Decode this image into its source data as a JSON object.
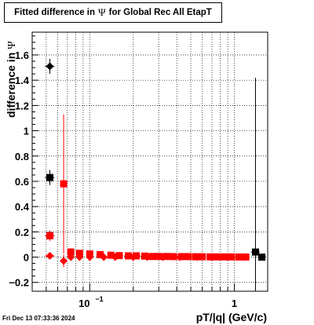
{
  "title": {
    "prefix": "Fitted difference in",
    "symbol": "Ψ",
    "suffix": "for Global Rec All EtapT"
  },
  "timestamp": "Fri Dec 13 07:33:36 2024",
  "chart_data": {
    "type": "scatter",
    "xlabel": "pT/|q| (GeV/c)",
    "ylabel_prefix": "difference in",
    "ylabel_symbol": "Ψ",
    "xscale": "log",
    "xlim": [
      0.04,
      1.7
    ],
    "ylim": [
      -0.27,
      1.78
    ],
    "grid": true,
    "xticks_major": [
      {
        "value": 0.1,
        "base": "10",
        "exp": "−1"
      },
      {
        "value": 1,
        "label": "1"
      }
    ],
    "yticks": [
      {
        "value": -0.2,
        "label": "−0.2"
      },
      {
        "value": 0,
        "label": "0"
      },
      {
        "value": 0.2,
        "label": "0.2"
      },
      {
        "value": 0.4,
        "label": "0.4"
      },
      {
        "value": 0.6,
        "label": "0.6"
      },
      {
        "value": 0.8,
        "label": "0.8"
      },
      {
        "value": 1,
        "label": "1"
      },
      {
        "value": 1.2,
        "label": "1.2"
      },
      {
        "value": 1.4,
        "label": "1.4"
      },
      {
        "value": 1.6,
        "label": "1.6"
      }
    ],
    "series": [
      {
        "marker": "diamond",
        "color": "#000000",
        "points": [
          {
            "x": 0.053,
            "y": 1.51,
            "xerr": 0.004,
            "yerr": 0.06
          }
        ]
      },
      {
        "marker": "square",
        "color": "#000000",
        "points": [
          {
            "x": 0.053,
            "y": 0.63,
            "xerr": 0.004,
            "yerr": 0.06
          },
          {
            "x": 0.053,
            "y": 0.17,
            "xerr": 0.004,
            "yerr": 0.04
          },
          {
            "x": 1.4,
            "y": 0.04,
            "xerr": 0.1,
            "yerr": 1.38
          },
          {
            "x": 1.55,
            "y": 0.0,
            "xerr": 0.1,
            "yerr": 0.02
          }
        ]
      },
      {
        "marker": "square",
        "color": "#ff0000",
        "points": [
          {
            "x": 0.053,
            "y": 0.17,
            "xerr": 0.004,
            "yerr": 0.04
          },
          {
            "x": 0.066,
            "y": 0.58,
            "xerr": 0.003,
            "yerr": 0.55
          },
          {
            "x": 0.074,
            "y": 0.04,
            "xerr": 0.004,
            "yerr": 0.03
          },
          {
            "x": 0.085,
            "y": 0.03,
            "xerr": 0.004,
            "yerr": 0.02
          },
          {
            "x": 0.1,
            "y": 0.025,
            "xerr": 0.005,
            "yerr": 0.02
          },
          {
            "x": 0.118,
            "y": 0.02,
            "xerr": 0.007,
            "yerr": 0.02
          },
          {
            "x": 0.14,
            "y": 0.015,
            "xerr": 0.008,
            "yerr": 0.015
          },
          {
            "x": 0.16,
            "y": 0.012,
            "xerr": 0.01,
            "yerr": 0.01
          },
          {
            "x": 0.185,
            "y": 0.01,
            "xerr": 0.012,
            "yerr": 0.01
          },
          {
            "x": 0.21,
            "y": 0.01,
            "xerr": 0.014,
            "yerr": 0.01
          },
          {
            "x": 0.24,
            "y": 0.008,
            "xerr": 0.015,
            "yerr": 0.008
          },
          {
            "x": 0.27,
            "y": 0.005,
            "xerr": 0.016,
            "yerr": 0.008
          },
          {
            "x": 0.3,
            "y": 0.005,
            "xerr": 0.018,
            "yerr": 0.008
          },
          {
            "x": 0.34,
            "y": 0.005,
            "xerr": 0.02,
            "yerr": 0.008
          },
          {
            "x": 0.38,
            "y": 0.004,
            "xerr": 0.022,
            "yerr": 0.008
          },
          {
            "x": 0.43,
            "y": 0.004,
            "xerr": 0.025,
            "yerr": 0.008
          },
          {
            "x": 0.48,
            "y": 0.004,
            "xerr": 0.028,
            "yerr": 0.008
          },
          {
            "x": 0.54,
            "y": 0.003,
            "xerr": 0.03,
            "yerr": 0.008
          },
          {
            "x": 0.6,
            "y": 0.003,
            "xerr": 0.035,
            "yerr": 0.008
          },
          {
            "x": 0.68,
            "y": 0.002,
            "xerr": 0.04,
            "yerr": 0.008
          },
          {
            "x": 0.76,
            "y": 0.002,
            "xerr": 0.045,
            "yerr": 0.008
          },
          {
            "x": 0.85,
            "y": 0.002,
            "xerr": 0.05,
            "yerr": 0.008
          },
          {
            "x": 0.95,
            "y": 0.002,
            "xerr": 0.055,
            "yerr": 0.008
          },
          {
            "x": 1.07,
            "y": 0.001,
            "xerr": 0.06,
            "yerr": 0.008
          },
          {
            "x": 1.2,
            "y": 0.001,
            "xerr": 0.065,
            "yerr": 0.008
          }
        ]
      },
      {
        "marker": "diamond",
        "color": "#ff0000",
        "points": [
          {
            "x": 0.053,
            "y": 0.01,
            "xerr": 0.004,
            "yerr": 0.02
          },
          {
            "x": 0.066,
            "y": -0.03,
            "xerr": 0.003,
            "yerr": 0.05
          },
          {
            "x": 0.074,
            "y": 0.0,
            "xerr": 0.004,
            "yerr": 0.02
          },
          {
            "x": 0.085,
            "y": 0.0,
            "xerr": 0.004,
            "yerr": 0.02
          },
          {
            "x": 0.1,
            "y": 0.0,
            "xerr": 0.005,
            "yerr": 0.01
          },
          {
            "x": 0.125,
            "y": 0.0,
            "xerr": 0.008,
            "yerr": 0.01
          },
          {
            "x": 0.15,
            "y": 0.0,
            "xerr": 0.01,
            "yerr": 0.01
          },
          {
            "x": 0.2,
            "y": 0.0,
            "xerr": 0.013,
            "yerr": 0.01
          },
          {
            "x": 0.25,
            "y": 0.0,
            "xerr": 0.016,
            "yerr": 0.01
          },
          {
            "x": 0.32,
            "y": 0.0,
            "xerr": 0.02,
            "yerr": 0.01
          },
          {
            "x": 0.42,
            "y": 0.0,
            "xerr": 0.025,
            "yerr": 0.01
          },
          {
            "x": 0.55,
            "y": 0.0,
            "xerr": 0.03,
            "yerr": 0.01
          },
          {
            "x": 0.7,
            "y": 0.0,
            "xerr": 0.04,
            "yerr": 0.01
          },
          {
            "x": 0.9,
            "y": 0.0,
            "xerr": 0.05,
            "yerr": 0.01
          },
          {
            "x": 1.15,
            "y": 0.0,
            "xerr": 0.06,
            "yerr": 0.01
          }
        ]
      }
    ]
  }
}
